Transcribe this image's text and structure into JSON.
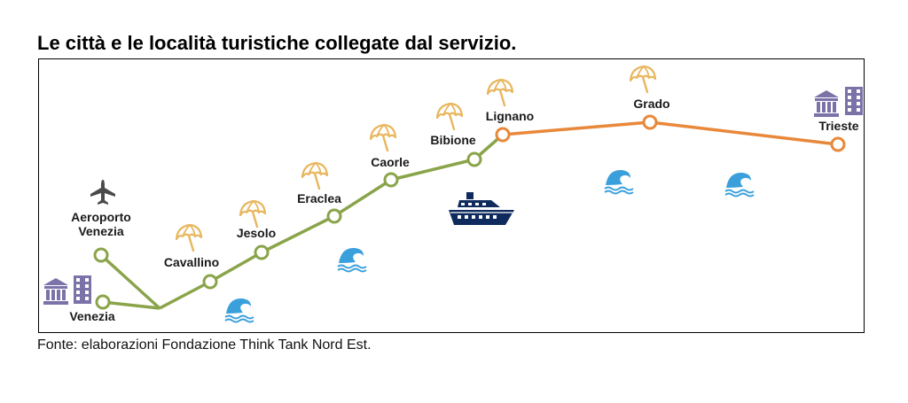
{
  "title": "Le città e le località turistiche collegate dal servizio.",
  "source": "Fonte: elaborazioni Fondazione Think Tank Nord Est.",
  "colors": {
    "green_line": "#8aa44a",
    "orange_line": "#e8883a",
    "umbrella": "#e8b75e",
    "waves": "#3aa0dc",
    "ship": "#0f2a5c",
    "buildings": "#7b72a8",
    "plane": "#4a4a4a"
  },
  "stops": [
    {
      "key": "venezia",
      "label": "Venezia",
      "line": "green",
      "icons": [
        "museum-icon",
        "building-icon"
      ]
    },
    {
      "key": "aeroporto",
      "label": "Aeroporto\nVenezia",
      "line": "green",
      "icons": [
        "airplane-icon"
      ]
    },
    {
      "key": "cavallino",
      "label": "Cavallino",
      "line": "green",
      "icons": [
        "beach-umbrella-icon"
      ]
    },
    {
      "key": "jesolo",
      "label": "Jesolo",
      "line": "green",
      "icons": [
        "beach-umbrella-icon"
      ]
    },
    {
      "key": "eraclea",
      "label": "Eraclea",
      "line": "green",
      "icons": [
        "beach-umbrella-icon"
      ]
    },
    {
      "key": "caorle",
      "label": "Caorle",
      "line": "green",
      "icons": [
        "beach-umbrella-icon"
      ]
    },
    {
      "key": "bibione",
      "label": "Bibione",
      "line": "green",
      "icons": [
        "beach-umbrella-icon"
      ]
    },
    {
      "key": "lignano",
      "label": "Lignano",
      "line": "orange",
      "icons": [
        "beach-umbrella-icon"
      ]
    },
    {
      "key": "grado",
      "label": "Grado",
      "line": "orange",
      "icons": [
        "beach-umbrella-icon"
      ]
    },
    {
      "key": "trieste",
      "label": "Trieste",
      "line": "orange",
      "icons": [
        "museum-icon",
        "building-icon"
      ]
    }
  ],
  "sea_icons": [
    "waves-icon",
    "waves-icon",
    "waves-icon",
    "waves-icon",
    "cruise-ship-icon"
  ]
}
